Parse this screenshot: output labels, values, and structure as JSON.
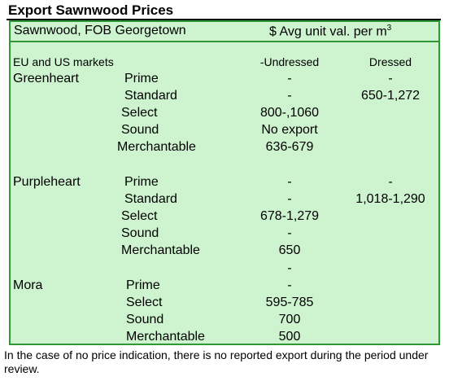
{
  "title": "Export Sawnwood Prices",
  "header": {
    "left": "Sawnwood, FOB Georgetown",
    "right_prefix": "$ Avg unit val. per m",
    "right_sup": "3"
  },
  "markets_label": "EU and US markets",
  "col_undressed": "-Undressed",
  "col_dressed": "Dressed",
  "species": {
    "greenheart": {
      "name": "Greenheart",
      "rows": [
        {
          "grade": "Prime",
          "undressed": "-",
          "dressed": "-"
        },
        {
          "grade": "Standard",
          "undressed": "-",
          "dressed": "650-1,272"
        },
        {
          "grade": "Select",
          "undressed": "800-,1060",
          "dressed": ""
        },
        {
          "grade": "Sound",
          "undressed": "No export",
          "dressed": ""
        },
        {
          "grade": "Merchantable",
          "undressed": "636-679",
          "dressed": ""
        }
      ]
    },
    "purpleheart": {
      "name": "Purpleheart",
      "rows": [
        {
          "grade": "Prime",
          "undressed": "-",
          "dressed": "-"
        },
        {
          "grade": "Standard",
          "undressed": "-",
          "dressed": "1,018-1,290"
        },
        {
          "grade": "Select",
          "undressed": "678-1,279",
          "dressed": ""
        },
        {
          "grade": "Sound",
          "undressed": "-",
          "dressed": ""
        },
        {
          "grade": "Merchantable",
          "undressed": "650",
          "dressed": ""
        }
      ],
      "trailing_dash": "-"
    },
    "mora": {
      "name": "Mora",
      "rows": [
        {
          "grade": "Prime",
          "undressed": "-",
          "dressed": ""
        },
        {
          "grade": "Select",
          "undressed": "595-785",
          "dressed": ""
        },
        {
          "grade": "Sound",
          "undressed": "700",
          "dressed": ""
        },
        {
          "grade": "Merchantable",
          "undressed": "500",
          "dressed": ""
        }
      ]
    }
  },
  "footnote": "In the case of no price indication, there is no reported export during the period under review."
}
